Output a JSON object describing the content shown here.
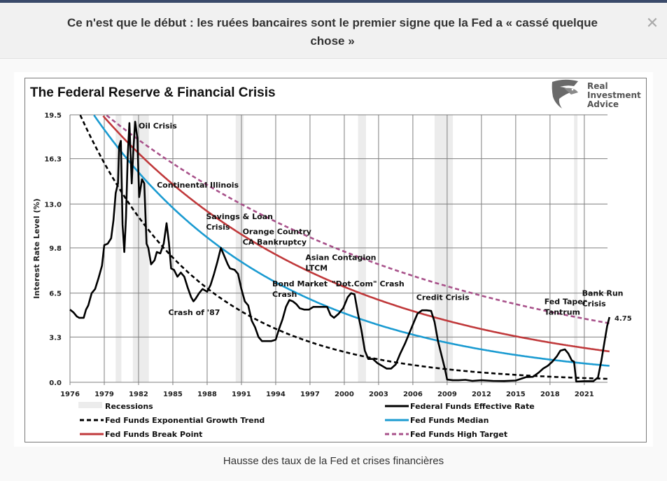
{
  "header": {
    "title": "Ce n'est que le début : les ruées bancaires sont le premier signe que la Fed a « cassé quelque chose »",
    "close_icon": "close-icon"
  },
  "caption": "Hausse des taux de la Fed et crises financières",
  "brand": {
    "line1": "Real",
    "line2": "Investment",
    "line3": "Advice",
    "logo_icon": "eagle-logo-icon"
  },
  "colors": {
    "effective": "#000000",
    "trend": "#000000",
    "median": "#1b9bd1",
    "breakpoint": "#c0393b",
    "high_target": "#a8518a",
    "recession": "#ececec",
    "grid": "#7f7f7f"
  },
  "chart_data": {
    "type": "line",
    "title": "The Federal Reserve & Financial Crisis",
    "xlabel": "",
    "ylabel": "Interest Rate Level (%)",
    "xlim": [
      1976,
      2023.3
    ],
    "ylim": [
      0,
      19.5
    ],
    "x_ticks": [
      "1976",
      "1979",
      "1982",
      "1985",
      "1988",
      "1991",
      "1994",
      "1997",
      "2000",
      "2003",
      "2006",
      "2009",
      "2012",
      "2015",
      "2018",
      "2021"
    ],
    "y_ticks": [
      "0.0",
      "3.3",
      "6.5",
      "9.8",
      "13.0",
      "16.3",
      "19.5"
    ],
    "grid": true,
    "legend_position": "bottom",
    "recessions": [
      [
        1980.0,
        1980.5
      ],
      [
        1981.5,
        1982.9
      ],
      [
        1990.5,
        1991.2
      ],
      [
        2001.2,
        2001.9
      ],
      [
        2007.9,
        2009.5
      ],
      [
        2020.1,
        2020.4
      ]
    ],
    "series": [
      {
        "name": "Federal Funds Effective Rate",
        "key": "effective",
        "style": "solid",
        "points": [
          [
            1976.0,
            5.3
          ],
          [
            1976.3,
            5.1
          ],
          [
            1976.6,
            4.8
          ],
          [
            1976.8,
            4.7
          ],
          [
            1977.2,
            4.7
          ],
          [
            1977.4,
            5.3
          ],
          [
            1977.6,
            5.6
          ],
          [
            1977.9,
            6.5
          ],
          [
            1978.2,
            6.8
          ],
          [
            1978.5,
            7.6
          ],
          [
            1978.8,
            8.5
          ],
          [
            1979.0,
            10.0
          ],
          [
            1979.3,
            10.1
          ],
          [
            1979.6,
            10.5
          ],
          [
            1979.8,
            11.8
          ],
          [
            1980.0,
            13.8
          ],
          [
            1980.2,
            14.5
          ],
          [
            1980.3,
            17.2
          ],
          [
            1980.45,
            17.6
          ],
          [
            1980.6,
            11.5
          ],
          [
            1980.75,
            9.5
          ],
          [
            1980.9,
            12.0
          ],
          [
            1981.05,
            16.5
          ],
          [
            1981.2,
            18.9
          ],
          [
            1981.4,
            14.5
          ],
          [
            1981.55,
            17.0
          ],
          [
            1981.7,
            19.0
          ],
          [
            1981.9,
            17.8
          ],
          [
            1982.05,
            13.5
          ],
          [
            1982.3,
            14.8
          ],
          [
            1982.5,
            14.5
          ],
          [
            1982.7,
            10.1
          ],
          [
            1982.85,
            9.8
          ],
          [
            1983.1,
            8.6
          ],
          [
            1983.4,
            8.9
          ],
          [
            1983.6,
            9.5
          ],
          [
            1983.9,
            9.4
          ],
          [
            1984.2,
            10.1
          ],
          [
            1984.45,
            11.6
          ],
          [
            1984.65,
            10.2
          ],
          [
            1984.85,
            8.3
          ],
          [
            1985.1,
            8.2
          ],
          [
            1985.4,
            7.7
          ],
          [
            1985.7,
            8.0
          ],
          [
            1986.0,
            7.7
          ],
          [
            1986.3,
            6.9
          ],
          [
            1986.6,
            6.2
          ],
          [
            1986.8,
            5.9
          ],
          [
            1987.0,
            6.1
          ],
          [
            1987.3,
            6.5
          ],
          [
            1987.6,
            6.8
          ],
          [
            1987.8,
            6.7
          ],
          [
            1988.0,
            6.6
          ],
          [
            1988.3,
            7.1
          ],
          [
            1988.6,
            7.9
          ],
          [
            1988.9,
            8.8
          ],
          [
            1989.2,
            9.8
          ],
          [
            1989.5,
            9.2
          ],
          [
            1989.8,
            8.6
          ],
          [
            1990.0,
            8.3
          ],
          [
            1990.4,
            8.2
          ],
          [
            1990.7,
            7.9
          ],
          [
            1991.0,
            6.8
          ],
          [
            1991.3,
            5.9
          ],
          [
            1991.6,
            5.6
          ],
          [
            1991.9,
            4.5
          ],
          [
            1992.2,
            4.0
          ],
          [
            1992.5,
            3.3
          ],
          [
            1992.8,
            3.0
          ],
          [
            1993.2,
            3.0
          ],
          [
            1993.6,
            3.0
          ],
          [
            1994.0,
            3.1
          ],
          [
            1994.3,
            3.9
          ],
          [
            1994.6,
            4.6
          ],
          [
            1994.9,
            5.5
          ],
          [
            1995.2,
            6.0
          ],
          [
            1995.5,
            5.9
          ],
          [
            1995.8,
            5.7
          ],
          [
            1996.1,
            5.4
          ],
          [
            1996.5,
            5.3
          ],
          [
            1996.9,
            5.3
          ],
          [
            1997.3,
            5.5
          ],
          [
            1997.7,
            5.5
          ],
          [
            1998.1,
            5.5
          ],
          [
            1998.5,
            5.5
          ],
          [
            1998.8,
            4.9
          ],
          [
            1999.1,
            4.7
          ],
          [
            1999.5,
            5.0
          ],
          [
            1999.9,
            5.4
          ],
          [
            2000.3,
            6.2
          ],
          [
            2000.6,
            6.5
          ],
          [
            2000.9,
            6.4
          ],
          [
            2001.2,
            5.0
          ],
          [
            2001.5,
            3.8
          ],
          [
            2001.8,
            2.3
          ],
          [
            2002.1,
            1.7
          ],
          [
            2002.5,
            1.7
          ],
          [
            2002.9,
            1.4
          ],
          [
            2003.3,
            1.2
          ],
          [
            2003.7,
            1.0
          ],
          [
            2004.1,
            1.0
          ],
          [
            2004.5,
            1.3
          ],
          [
            2004.9,
            2.1
          ],
          [
            2005.3,
            2.8
          ],
          [
            2005.7,
            3.6
          ],
          [
            2006.1,
            4.4
          ],
          [
            2006.4,
            5.0
          ],
          [
            2006.8,
            5.25
          ],
          [
            2007.2,
            5.25
          ],
          [
            2007.6,
            5.2
          ],
          [
            2007.9,
            4.4
          ],
          [
            2008.2,
            3.0
          ],
          [
            2008.5,
            2.0
          ],
          [
            2008.8,
            1.0
          ],
          [
            2009.0,
            0.2
          ],
          [
            2009.5,
            0.15
          ],
          [
            2010.0,
            0.15
          ],
          [
            2010.6,
            0.18
          ],
          [
            2011.2,
            0.1
          ],
          [
            2012.0,
            0.15
          ],
          [
            2013.0,
            0.1
          ],
          [
            2014.0,
            0.09
          ],
          [
            2015.0,
            0.13
          ],
          [
            2015.9,
            0.38
          ],
          [
            2016.5,
            0.4
          ],
          [
            2017.0,
            0.7
          ],
          [
            2017.4,
            1.0
          ],
          [
            2017.8,
            1.2
          ],
          [
            2018.2,
            1.5
          ],
          [
            2018.6,
            1.9
          ],
          [
            2018.9,
            2.3
          ],
          [
            2019.3,
            2.4
          ],
          [
            2019.6,
            2.1
          ],
          [
            2019.9,
            1.6
          ],
          [
            2020.1,
            1.5
          ],
          [
            2020.3,
            0.05
          ],
          [
            2021.0,
            0.08
          ],
          [
            2021.8,
            0.08
          ],
          [
            2022.2,
            0.35
          ],
          [
            2022.5,
            1.6
          ],
          [
            2022.8,
            3.1
          ],
          [
            2023.0,
            4.1
          ],
          [
            2023.2,
            4.75
          ]
        ]
      },
      {
        "name": "Fed Funds Exponential Growth Trend",
        "key": "trend",
        "style": "dashed",
        "start_value": 21.2,
        "end_value": 0.25,
        "x_range": [
          1976.0,
          2023.2
        ]
      },
      {
        "name": "Fed Funds Median",
        "key": "median",
        "style": "solid",
        "start_value": 21.5,
        "end_value": 1.2,
        "x_range": [
          1976.5,
          2023.2
        ]
      },
      {
        "name": "Fed Funds Break Point",
        "key": "breakpoint",
        "style": "solid",
        "start_value": 21.3,
        "end_value": 2.25,
        "x_range": [
          1977.0,
          2023.2
        ]
      },
      {
        "name": "Fed Funds High Target",
        "key": "high_target",
        "style": "dashed",
        "start_value": 19.6,
        "end_value": 4.3,
        "x_range": [
          1979.0,
          2023.2
        ]
      }
    ],
    "end_label": "4.75",
    "annotations": [
      {
        "lines": [
          "Oil Crisis"
        ],
        "x": 1982.0,
        "y": 18.5
      },
      {
        "lines": [
          "Continental Illinois"
        ],
        "x": 1983.6,
        "y": 14.2
      },
      {
        "lines": [
          "Savings & Loan",
          "Crisis"
        ],
        "x": 1987.9,
        "y": 11.9
      },
      {
        "lines": [
          "Orange Country",
          "CA Bankruptcy"
        ],
        "x": 1991.1,
        "y": 10.8
      },
      {
        "lines": [
          "Bond Market",
          "Crash"
        ],
        "x": 1993.7,
        "y": 7.0
      },
      {
        "lines": [
          "Asian Contagion",
          "LTCM"
        ],
        "x": 1996.6,
        "y": 8.9
      },
      {
        "lines": [
          "\"Dot.Com\" Crash"
        ],
        "x": 1998.9,
        "y": 7.0
      },
      {
        "lines": [
          "Crash of '87"
        ],
        "x": 1984.6,
        "y": 4.9
      },
      {
        "lines": [
          "Credit Crisis"
        ],
        "x": 2006.3,
        "y": 6.0
      },
      {
        "lines": [
          "Fed Taper",
          "Tantrum"
        ],
        "x": 2017.5,
        "y": 5.7
      },
      {
        "lines": [
          "Bank Run",
          "Crisis"
        ],
        "x": 2020.8,
        "y": 6.3
      }
    ],
    "legend": [
      {
        "label": "Recessions",
        "kind": "recession"
      },
      {
        "label": "Federal Funds Effective Rate",
        "kind": "effective"
      },
      {
        "label": "Fed Funds Exponential Growth Trend",
        "kind": "trend"
      },
      {
        "label": "Fed Funds Median",
        "kind": "median"
      },
      {
        "label": "Fed Funds Break Point",
        "kind": "breakpoint"
      },
      {
        "label": "Fed Funds High Target",
        "kind": "high_target"
      }
    ]
  }
}
